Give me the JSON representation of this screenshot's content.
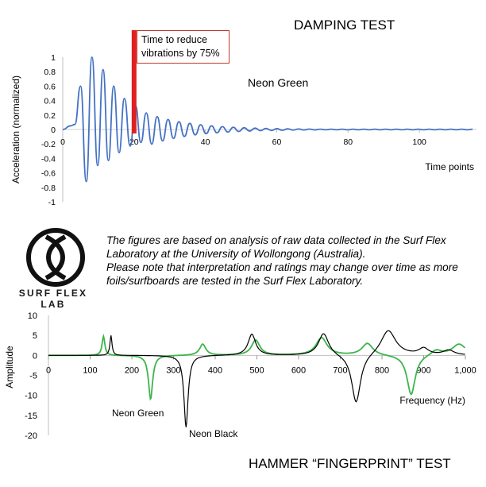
{
  "chart_data": [
    {
      "type": "line",
      "title": "DAMPING TEST",
      "xlabel": "Time points",
      "ylabel": "Acceleration (normalized)",
      "xlim": [
        0,
        116
      ],
      "ylim": [
        -1,
        1
      ],
      "x_ticks": [
        "0",
        "20",
        "40",
        "60",
        "80",
        "100"
      ],
      "y_ticks": [
        "1",
        "0.8",
        "0.6",
        "0.4",
        "0.2",
        "0",
        "-0.2",
        "-0.4",
        "-0.6",
        "-0.8",
        "-1"
      ],
      "series": [
        {
          "name": "Neon Green",
          "color": "#4472c4",
          "decay": [
            {
              "peak_t": 5.0,
              "peak": 0.6,
              "trough_t": 6.6,
              "trough": -0.72
            },
            {
              "peak_t": 8.2,
              "peak": 1.0,
              "trough_t": 9.8,
              "trough": -0.5
            },
            {
              "peak_t": 11.3,
              "peak": 0.83,
              "trough_t": 12.8,
              "trough": -0.43
            },
            {
              "peak_t": 14.3,
              "peak": 0.6,
              "trough_t": 15.8,
              "trough": -0.32
            },
            {
              "peak_t": 17.3,
              "peak": 0.43,
              "trough_t": 18.9,
              "trough": -0.23
            },
            {
              "peak_t": 20.4,
              "peak": 0.33,
              "trough_t": 21.9,
              "trough": -0.18
            }
          ],
          "start": 0.05,
          "decay_rate": 0.082,
          "period": 3.05,
          "amp_after": 0.26
        }
      ],
      "annotations": [
        {
          "text": "Time to reduce vibrations by 75%",
          "x": 20,
          "color": "#e02020"
        },
        {
          "text": "Neon Green"
        }
      ]
    },
    {
      "type": "line",
      "title": "HAMMER “FINGERPRINT” TEST",
      "xlabel": "Frequency (Hz)",
      "ylabel": "Amplitude",
      "xlim": [
        0,
        1000
      ],
      "ylim": [
        -20,
        10
      ],
      "x_ticks": [
        "0",
        "100",
        "200",
        "300",
        "400",
        "500",
        "600",
        "700",
        "800",
        "900",
        "1,000"
      ],
      "y_ticks": [
        "10",
        "5",
        "0",
        "-5",
        "-10",
        "-15",
        "-20"
      ],
      "series": [
        {
          "name": "Neon Green",
          "color": "#3db54a",
          "resonances": [
            {
              "f": 132,
              "amp": 4.8,
              "w": 4
            },
            {
              "f": 245,
              "amp": -11.0,
              "w": 6
            },
            {
              "f": 370,
              "amp": 2.8,
              "w": 9
            },
            {
              "f": 497,
              "amp": 3.8,
              "w": 12
            },
            {
              "f": 655,
              "amp": 4.4,
              "w": 16
            },
            {
              "f": 765,
              "amp": 3.0,
              "w": 16
            },
            {
              "f": 870,
              "amp": -10.0,
              "w": 12
            },
            {
              "f": 930,
              "amp": 1.4,
              "w": 16
            },
            {
              "f": 985,
              "amp": 2.8,
              "w": 20
            }
          ]
        },
        {
          "name": "Neon Black",
          "color": "#000000",
          "resonances": [
            {
              "f": 150,
              "amp": 5.0,
              "w": 3
            },
            {
              "f": 330,
              "amp": -18.0,
              "w": 6
            },
            {
              "f": 488,
              "amp": 5.3,
              "w": 11
            },
            {
              "f": 660,
              "amp": 5.6,
              "w": 15
            },
            {
              "f": 738,
              "amp": -12.3,
              "w": 13
            },
            {
              "f": 815,
              "amp": 6.4,
              "w": 22
            },
            {
              "f": 900,
              "amp": 1.6,
              "w": 14
            },
            {
              "f": 960,
              "amp": 1.2,
              "w": 16
            }
          ]
        }
      ],
      "annotations": [
        {
          "text": "Neon Green",
          "x": 245
        },
        {
          "text": "Neon Black",
          "x": 330
        }
      ]
    }
  ],
  "logo": {
    "text": "SURF FLEX LAB"
  },
  "note": [
    "The figures are based on analysis of raw data collected in the Surf Flex Laboratory at the University of Wollongong (Australia).",
    "Please note that interpretation and ratings may change over time as more foils/surfboards are tested in the Surf Flex Laboratory."
  ]
}
